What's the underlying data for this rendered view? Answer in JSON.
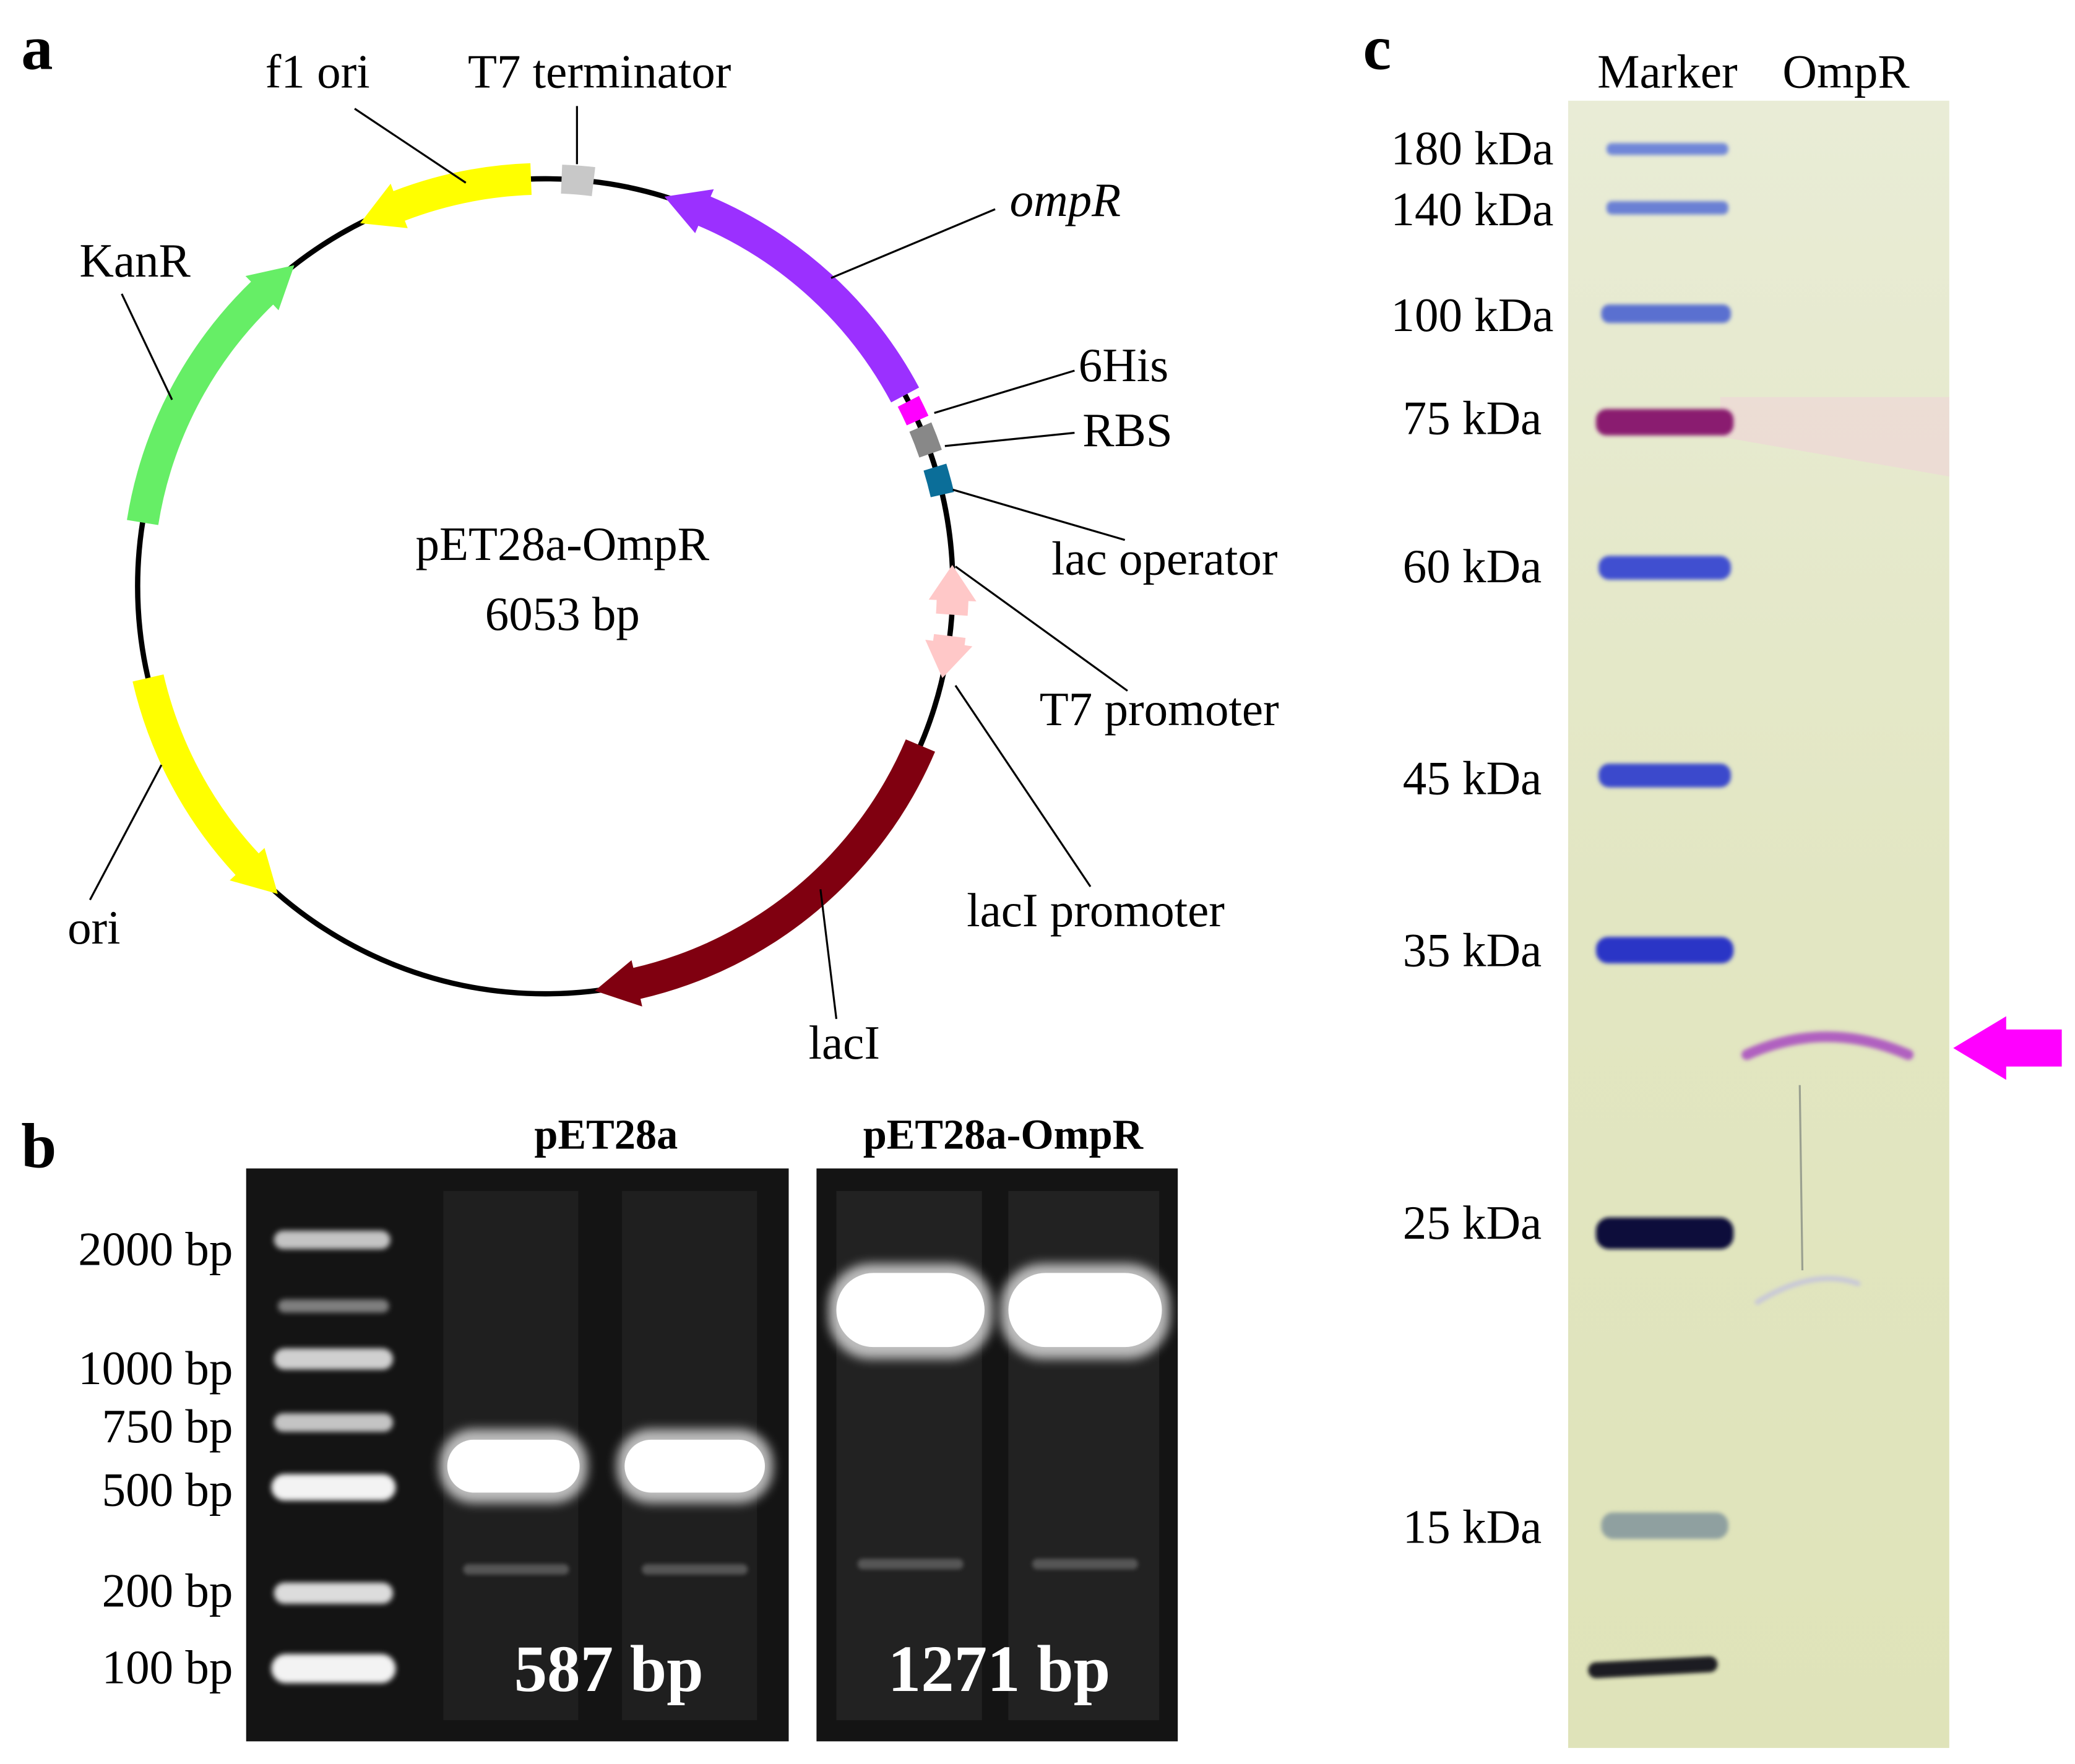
{
  "panels": {
    "a": {
      "letter": "a",
      "plasmid_name": "pET28a-OmpR",
      "plasmid_size": "6053 bp",
      "features": {
        "f1_ori": "f1 ori",
        "t7_terminator": "T7 terminator",
        "ompR": "ompR",
        "his6": "6His",
        "rbs": "RBS",
        "lac_operator": "lac operator",
        "t7_promoter": "T7 promoter",
        "lacI_promoter": "lacI promoter",
        "lacI": "lacI",
        "ori": "ori",
        "kanR": "KanR"
      },
      "colors": {
        "ompR": "#9b30ff",
        "kanR": "#66ee66",
        "ori": "#ffff00",
        "f1_ori": "#ffff00",
        "lacI": "#800010",
        "his6": "#ff00ff",
        "rbs": "#888888",
        "lac_operator": "#0b6e99",
        "t7_promoter": "#ffc8c8",
        "lacI_promoter": "#ffc8c8",
        "t7_terminator": "#c8c8c8"
      }
    },
    "b": {
      "letter": "b",
      "gel1_title": "pET28a",
      "gel2_title": "pET28a-OmpR",
      "ladder": [
        "2000 bp",
        "1000 bp",
        "750 bp",
        "500 bp",
        "200 bp",
        "100 bp"
      ],
      "gel1_band": "587 bp",
      "gel2_band": "1271 bp"
    },
    "c": {
      "letter": "c",
      "lane_labels": [
        "Marker",
        "OmpR"
      ],
      "markers": [
        "180 kDa",
        "140 kDa",
        "100 kDa",
        "75 kDa",
        "60 kDa",
        "45 kDa",
        "35 kDa",
        "25 kDa",
        "15 kDa"
      ],
      "arrow_color": "#ff00ff"
    }
  }
}
